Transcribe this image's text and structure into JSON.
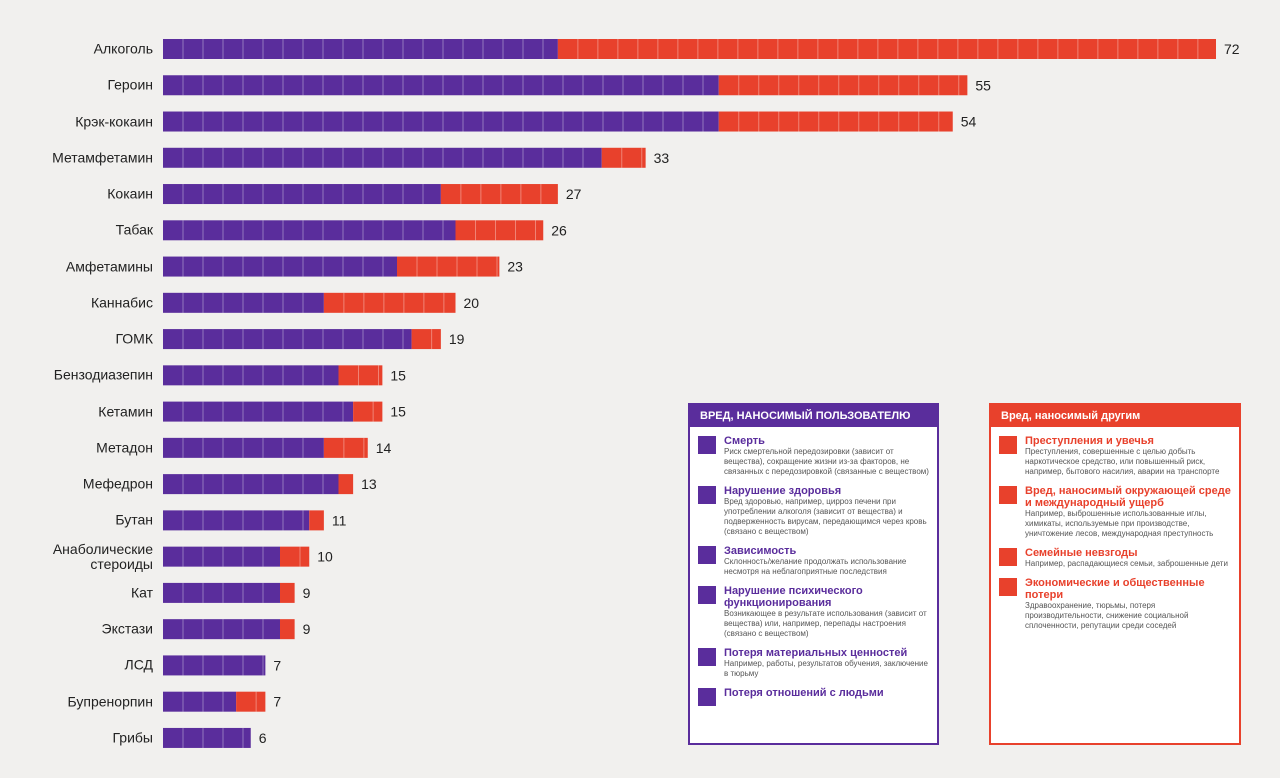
{
  "chart_data": {
    "type": "stacked-bar-horizontal",
    "categories": [
      "Алкоголь",
      "Героин",
      "Крэк-кокаин",
      "Метамфетамин",
      "Кокаин",
      "Табак",
      "Амфетамины",
      "Каннабис",
      "ГОМК",
      "Бензодиазепин",
      "Кетамин",
      "Метадон",
      "Мефедрон",
      "Бутан",
      "Анаболические стероиды",
      "Кат",
      "Экстази",
      "ЛСД",
      "Бупренорпин",
      "Грибы"
    ],
    "series": [
      {
        "name": "ВРЕД, НАНОСИМЫЙ ПОЛЬЗОВАТЕЛЮ",
        "color": "#5a2d9c",
        "values": [
          27,
          38,
          38,
          30,
          19,
          20,
          16,
          11,
          17,
          12,
          13,
          11,
          12,
          10,
          8,
          8,
          8,
          7,
          5,
          6
        ]
      },
      {
        "name": "Вред, наносимый другим",
        "color": "#e8412c",
        "values": [
          45,
          17,
          16,
          3,
          8,
          6,
          7,
          9,
          2,
          3,
          2,
          3,
          1,
          1,
          2,
          1,
          1,
          0,
          2,
          0
        ]
      }
    ],
    "totals": [
      72,
      55,
      54,
      33,
      27,
      26,
      23,
      20,
      19,
      15,
      15,
      14,
      13,
      11,
      10,
      9,
      9,
      7,
      7,
      6
    ]
  },
  "legend": {
    "user": [
      {
        "title": "Смерть",
        "text": "Риск смертельной передозировки (зависит от вещества), сокращение жизни из-за факторов, не связанных с передозировкой (связанные с веществом)"
      },
      {
        "title": "Нарушение здоровья",
        "text": "Вред здоровью, например, цирроз печени при употреблении алкоголя (зависит от вещества) и подверженность вирусам, передающимся через кровь (связано с веществом)"
      },
      {
        "title": "Зависимость",
        "text": "Склонность/желание продолжать использование несмотря на неблагоприятные последствия"
      },
      {
        "title": "Нарушение психического функционирования",
        "text": "Возникающее в результате использования (зависит от вещества) или, например, перепады настроения (связано с веществом)"
      },
      {
        "title": "Потеря материальных ценностей",
        "text": "Например, работы, результатов обучения, заключение в тюрьму"
      },
      {
        "title": "Потеря отношений с людьми"
      }
    ],
    "others": [
      {
        "title": "Преступления и увечья",
        "text": "Преступления, совершенные с целью добыть наркотическое средство, или повышенный риск, например, бытового насилия, аварии на транспорте"
      },
      {
        "title": "Вред, наносимый окружающей среде и международный ущерб",
        "text": "Например, выброшенные использованные иглы, химикаты, используемые при производстве, уничтожение лесов, международная преступность"
      },
      {
        "title": "Семейные невзгоды",
        "text": "Например, распадающиеся семьи, заброшенные дети"
      },
      {
        "title": "Экономические и общественные потери",
        "text": "Здравоохранение, тюрьмы, потеря производительности, снижение социальной сплоченности, репутации среди соседей"
      }
    ]
  }
}
